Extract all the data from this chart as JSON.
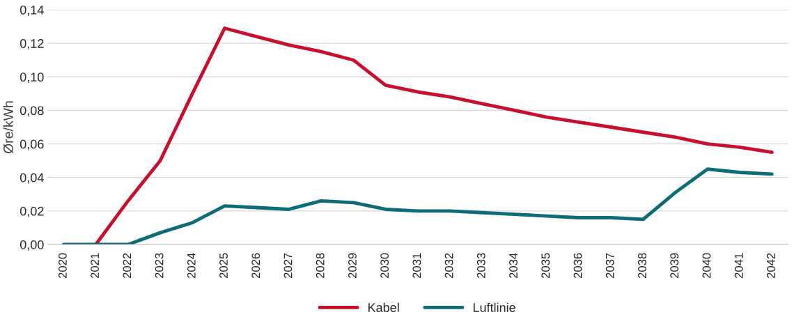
{
  "chart_data": {
    "type": "line",
    "ylabel": "Øre/kWh",
    "categories": [
      "2020",
      "2021",
      "2022",
      "2023",
      "2024",
      "2025",
      "2026",
      "2027",
      "2028",
      "2029",
      "2030",
      "2031",
      "2032",
      "2033",
      "2034",
      "2035",
      "2036",
      "2037",
      "2038",
      "2039",
      "2040",
      "2041",
      "2042"
    ],
    "series": [
      {
        "name": "Kabel",
        "color": "#c8102e",
        "values": [
          null,
          0,
          0.026,
          0.05,
          0.09,
          0.129,
          0.124,
          0.119,
          0.115,
          0.11,
          0.095,
          0.091,
          0.088,
          0.084,
          0.08,
          0.076,
          0.073,
          0.07,
          0.067,
          0.064,
          0.06,
          0.058,
          0.055
        ]
      },
      {
        "name": "Luftlinie",
        "color": "#0e6b78",
        "values": [
          0,
          0,
          0,
          0.007,
          0.013,
          0.023,
          0.022,
          0.021,
          0.026,
          0.025,
          0.021,
          0.02,
          0.02,
          0.019,
          0.018,
          0.017,
          0.016,
          0.016,
          0.015,
          0.031,
          0.045,
          0.043,
          0.042
        ]
      }
    ],
    "ylim": [
      0,
      0.14
    ],
    "yticks": [
      {
        "value": 0,
        "label": "0,00"
      },
      {
        "value": 0.02,
        "label": "0,02"
      },
      {
        "value": 0.04,
        "label": "0,04"
      },
      {
        "value": 0.06,
        "label": "0,06"
      },
      {
        "value": 0.08,
        "label": "0,08"
      },
      {
        "value": 0.1,
        "label": "0,10"
      },
      {
        "value": 0.12,
        "label": "0,12"
      },
      {
        "value": 0.14,
        "label": "0,14"
      }
    ],
    "grid": "y",
    "legend": "bottom",
    "marker": "none",
    "line_style": "solid"
  }
}
